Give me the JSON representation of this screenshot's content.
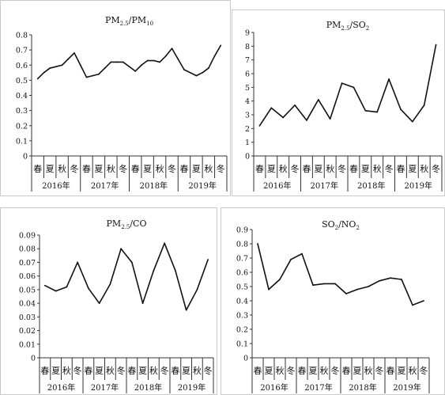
{
  "chart_data": [
    {
      "type": "line",
      "title": "PM2.5/PM10",
      "title_parts": {
        "base1": "PM",
        "sub1": "2.5",
        "slash": "/PM",
        "sub2": "10"
      },
      "categories": [
        "春",
        "夏",
        "秋",
        "冬",
        "春",
        "夏",
        "秋",
        "冬",
        "春",
        "夏",
        "秋",
        "冬",
        "春",
        "夏",
        "秋",
        "冬"
      ],
      "groups": [
        "2016年",
        "2017年",
        "2018年",
        "2019年"
      ],
      "ylim": [
        0,
        0.8
      ],
      "yticks": [
        "0",
        "0.1",
        "0.2",
        "0.3",
        "0.4",
        "0.5",
        "0.6",
        "0.7",
        "0.8"
      ],
      "x": [
        1,
        1.5,
        2,
        2.5,
        3,
        3.5,
        4,
        4.5,
        5,
        5.5,
        6,
        6.5,
        7,
        7.5,
        8,
        8.5,
        9,
        9.5,
        10,
        10.5,
        11,
        11.5,
        12,
        12.5,
        13,
        13.5,
        14,
        14.5,
        15,
        15.5,
        16
      ],
      "values": [
        0.51,
        0.55,
        0.58,
        0.59,
        0.6,
        0.64,
        0.68,
        0.6,
        0.52,
        0.53,
        0.54,
        0.58,
        0.62,
        0.62,
        0.62,
        0.59,
        0.56,
        0.6,
        0.63,
        0.63,
        0.62,
        0.66,
        0.71,
        0.64,
        0.57,
        0.55,
        0.53,
        0.55,
        0.58,
        0.66,
        0.73
      ],
      "grid": false
    },
    {
      "type": "line",
      "title": "PM2.5/SO2",
      "title_parts": {
        "base1": "PM",
        "sub1": "2.5",
        "slash": "/SO",
        "sub2": "2"
      },
      "categories": [
        "春",
        "夏",
        "秋",
        "冬",
        "春",
        "夏",
        "秋",
        "冬",
        "春",
        "夏",
        "秋",
        "冬",
        "春",
        "夏",
        "秋",
        "冬"
      ],
      "groups": [
        "2016年",
        "2017年",
        "2018年",
        "2019年"
      ],
      "ylim": [
        0,
        9
      ],
      "yticks": [
        "0",
        "1",
        "2",
        "3",
        "4",
        "5",
        "6",
        "7",
        "8",
        "9"
      ],
      "x": [
        1,
        2,
        3,
        4,
        5,
        6,
        7,
        8,
        9,
        10,
        11,
        12,
        13,
        14,
        15,
        16
      ],
      "values": [
        2.2,
        3.5,
        2.8,
        3.7,
        2.6,
        4.1,
        2.7,
        5.3,
        5.0,
        3.3,
        3.2,
        5.6,
        3.4,
        2.5,
        3.7,
        8.1
      ],
      "grid": false
    },
    {
      "type": "line",
      "title": "PM2.5/CO",
      "title_parts": {
        "base1": "PM",
        "sub1": "2.5",
        "slash": "/CO",
        "sub2": ""
      },
      "categories": [
        "春",
        "夏",
        "秋",
        "冬",
        "春",
        "夏",
        "秋",
        "冬",
        "春",
        "夏",
        "秋",
        "冬",
        "春",
        "夏",
        "秋",
        "冬"
      ],
      "groups": [
        "2016年",
        "2017年",
        "2018年",
        "2019年"
      ],
      "ylim": [
        0,
        0.09
      ],
      "yticks": [
        "0",
        "0.01",
        "0.02",
        "0.03",
        "0.04",
        "0.05",
        "0.06",
        "0.07",
        "0.08",
        "0.09"
      ],
      "x": [
        1,
        2,
        3,
        4,
        5,
        6,
        7,
        8,
        9,
        10,
        11,
        12,
        13,
        14,
        15,
        16
      ],
      "values": [
        0.053,
        0.049,
        0.052,
        0.07,
        0.051,
        0.04,
        0.054,
        0.08,
        0.07,
        0.04,
        0.064,
        0.084,
        0.064,
        0.035,
        0.05,
        0.072
      ],
      "grid": false
    },
    {
      "type": "line",
      "title": "SO2/NO2",
      "title_parts": {
        "base1": "SO",
        "sub1": "2",
        "slash": "/NO",
        "sub2": "2"
      },
      "categories": [
        "春",
        "夏",
        "秋",
        "冬",
        "春",
        "夏",
        "秋",
        "冬",
        "春",
        "夏",
        "秋",
        "冬",
        "春",
        "夏",
        "秋",
        "冬"
      ],
      "groups": [
        "2016年",
        "2017年",
        "2018年",
        "2019年"
      ],
      "ylim": [
        0,
        0.9
      ],
      "yticks": [
        "0",
        "0.1",
        "0.2",
        "0.3",
        "0.4",
        "0.5",
        "0.6",
        "0.7",
        "0.8",
        "0.9"
      ],
      "x": [
        1,
        2,
        3,
        4,
        5,
        6,
        7,
        8,
        9,
        10,
        11,
        12,
        13,
        14,
        15,
        16
      ],
      "values": [
        0.8,
        0.48,
        0.55,
        0.69,
        0.73,
        0.51,
        0.52,
        0.52,
        0.45,
        0.48,
        0.5,
        0.54,
        0.56,
        0.55,
        0.37,
        0.4
      ],
      "grid": false
    }
  ]
}
